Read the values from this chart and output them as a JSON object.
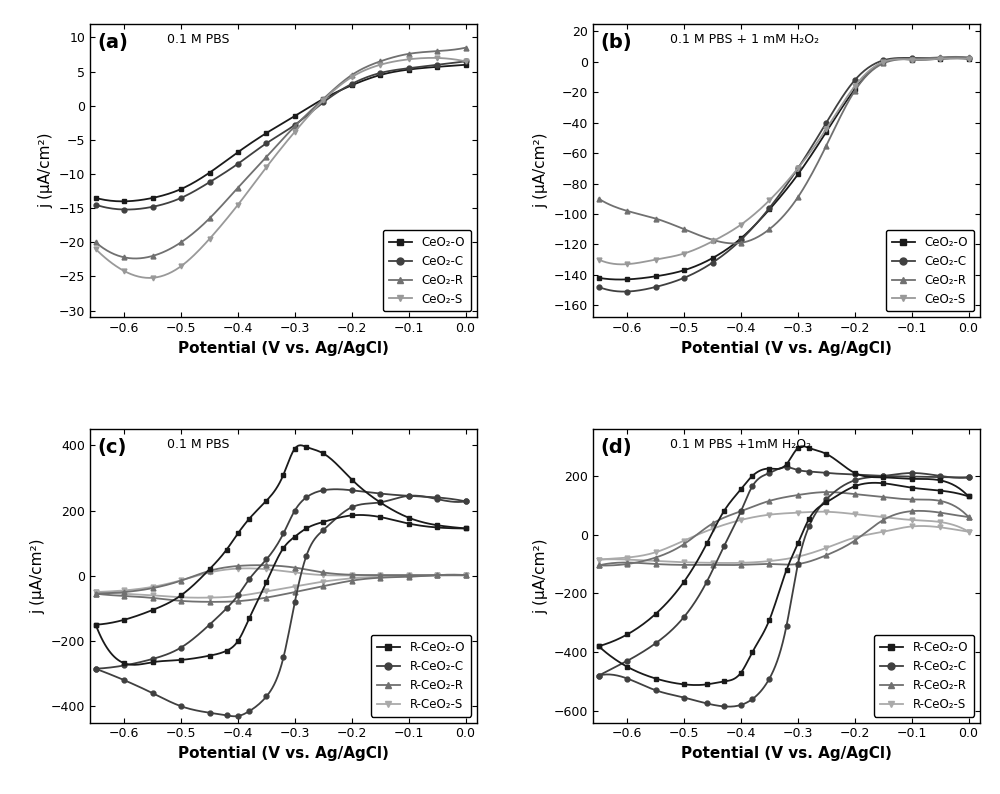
{
  "fig_width": 10.0,
  "fig_height": 7.94,
  "background_color": "#ffffff",
  "panel_titles": [
    "0.1 M PBS",
    "0.1 M PBS + 1 mM H₂O₂",
    "0.1 M PBS",
    "0.1 M PBS +1mM H₂O₂"
  ],
  "xlabel": "Potential (V vs. Ag/AgCl)",
  "ylabel": "j (μA/cm²)",
  "xlim": [
    -0.66,
    0.02
  ],
  "xticks": [
    -0.6,
    -0.5,
    -0.4,
    -0.3,
    -0.2,
    -0.1,
    0.0
  ],
  "ylim_a": [
    -31,
    12
  ],
  "yticks_a": [
    -30,
    -25,
    -20,
    -15,
    -10,
    -5,
    0,
    5,
    10
  ],
  "ylim_b": [
    -168,
    25
  ],
  "yticks_b": [
    -160,
    -140,
    -120,
    -100,
    -80,
    -60,
    -40,
    -20,
    0,
    20
  ],
  "ylim_c": [
    -450,
    450
  ],
  "yticks_c": [
    -400,
    -200,
    0,
    200,
    400
  ],
  "ylim_d": [
    -640,
    360
  ],
  "yticks_d": [
    -600,
    -400,
    -200,
    0,
    200
  ],
  "colors_ab": {
    "O": "#1a1a1a",
    "C": "#404040",
    "R": "#707070",
    "S": "#999999"
  },
  "colors_cd": {
    "O": "#1a1a1a",
    "C": "#404040",
    "R": "#707070",
    "S": "#aaaaaa"
  },
  "markers": {
    "O": "s",
    "C": "o",
    "R": "^",
    "S": "v"
  },
  "legend_ab": [
    "CeO₂-O",
    "CeO₂-C",
    "CeO₂-R",
    "CeO₂-S"
  ],
  "legend_cd": [
    "R-CeO₂-O",
    "R-CeO₂-C",
    "R-CeO₂-R",
    "R-CeO₂-S"
  ],
  "a_knots_x": [
    -0.65,
    -0.6,
    -0.55,
    -0.5,
    -0.45,
    -0.4,
    -0.35,
    -0.3,
    -0.25,
    -0.2,
    -0.15,
    -0.1,
    -0.05,
    0.0
  ],
  "a_O_y": [
    -13.5,
    -14.0,
    -13.5,
    -12.2,
    -9.8,
    -6.8,
    -4.0,
    -1.5,
    1.0,
    3.0,
    4.5,
    5.3,
    5.7,
    6.0
  ],
  "a_C_y": [
    -14.5,
    -15.2,
    -14.8,
    -13.5,
    -11.2,
    -8.5,
    -5.5,
    -2.8,
    0.5,
    3.2,
    4.8,
    5.5,
    6.0,
    6.5
  ],
  "a_R_y": [
    -20.0,
    -22.2,
    -22.0,
    -20.0,
    -16.5,
    -12.0,
    -7.5,
    -3.0,
    1.0,
    4.5,
    6.5,
    7.6,
    8.0,
    8.5
  ],
  "a_S_y": [
    -21.0,
    -24.2,
    -25.2,
    -23.5,
    -19.5,
    -14.5,
    -9.0,
    -3.8,
    0.8,
    4.2,
    6.0,
    6.8,
    7.0,
    6.5
  ],
  "b_knots_x": [
    -0.65,
    -0.6,
    -0.55,
    -0.5,
    -0.45,
    -0.4,
    -0.35,
    -0.3,
    -0.25,
    -0.2,
    -0.15,
    -0.1,
    -0.05,
    0.0
  ],
  "b_O_y": [
    -142,
    -143,
    -141,
    -137,
    -129,
    -116,
    -97,
    -74,
    -46,
    -18,
    0,
    1.5,
    2.0,
    2.0
  ],
  "b_C_y": [
    -148,
    -151,
    -148,
    -142,
    -132,
    -117,
    -96,
    -70,
    -40,
    -12,
    1,
    2.5,
    2.5,
    2.5
  ],
  "b_R_y": [
    -90,
    -98,
    -103,
    -110,
    -117,
    -119,
    -110,
    -89,
    -55,
    -19,
    -1,
    2.0,
    3.0,
    3.0
  ],
  "b_S_y": [
    -130,
    -133,
    -130,
    -126,
    -118,
    -107,
    -91,
    -70,
    -44,
    -16,
    0,
    1.5,
    2.0,
    2.0
  ],
  "c_O_fwd_x": [
    -0.65,
    -0.6,
    -0.55,
    -0.5,
    -0.45,
    -0.42,
    -0.4,
    -0.38,
    -0.35,
    -0.32,
    -0.3,
    -0.28,
    -0.25,
    -0.2,
    -0.15,
    -0.1,
    -0.05,
    0.0
  ],
  "c_O_fwd_y": [
    -150,
    -135,
    -105,
    -60,
    20,
    80,
    130,
    175,
    230,
    310,
    390,
    395,
    375,
    295,
    225,
    178,
    155,
    145
  ],
  "c_O_rev_x": [
    0.0,
    -0.05,
    -0.1,
    -0.15,
    -0.2,
    -0.25,
    -0.28,
    -0.3,
    -0.32,
    -0.35,
    -0.38,
    -0.4,
    -0.42,
    -0.45,
    -0.5,
    -0.55,
    -0.6,
    -0.65
  ],
  "c_O_rev_y": [
    145,
    148,
    160,
    180,
    185,
    165,
    145,
    120,
    85,
    -20,
    -130,
    -200,
    -230,
    -245,
    -258,
    -265,
    -268,
    -150
  ],
  "c_C_fwd_x": [
    -0.65,
    -0.6,
    -0.55,
    -0.5,
    -0.45,
    -0.42,
    -0.4,
    -0.38,
    -0.35,
    -0.32,
    -0.3,
    -0.28,
    -0.25,
    -0.2,
    -0.15,
    -0.1,
    -0.05,
    0.0
  ],
  "c_C_fwd_y": [
    -285,
    -275,
    -255,
    -220,
    -150,
    -100,
    -60,
    -10,
    50,
    130,
    200,
    240,
    262,
    262,
    252,
    245,
    240,
    228
  ],
  "c_C_rev_x": [
    0.0,
    -0.05,
    -0.1,
    -0.15,
    -0.2,
    -0.25,
    -0.28,
    -0.3,
    -0.32,
    -0.35,
    -0.38,
    -0.4,
    -0.42,
    -0.45,
    -0.5,
    -0.55,
    -0.6,
    -0.65
  ],
  "c_C_rev_y": [
    228,
    235,
    245,
    225,
    210,
    140,
    60,
    -80,
    -250,
    -370,
    -415,
    -430,
    -428,
    -420,
    -400,
    -360,
    -320,
    -285
  ],
  "c_R_fwd_x": [
    -0.65,
    -0.6,
    -0.55,
    -0.5,
    -0.45,
    -0.4,
    -0.35,
    -0.3,
    -0.25,
    -0.2,
    -0.15,
    -0.1,
    -0.05,
    0.0
  ],
  "c_R_fwd_y": [
    -55,
    -50,
    -38,
    -15,
    15,
    30,
    32,
    25,
    10,
    3,
    2,
    2,
    2,
    2
  ],
  "c_R_rev_x": [
    0.0,
    -0.05,
    -0.1,
    -0.15,
    -0.2,
    -0.25,
    -0.3,
    -0.35,
    -0.4,
    -0.45,
    -0.5,
    -0.55,
    -0.6,
    -0.65
  ],
  "c_R_rev_y": [
    2,
    2,
    -3,
    -6,
    -15,
    -32,
    -50,
    -67,
    -78,
    -80,
    -77,
    -68,
    -62,
    -55
  ],
  "c_S_fwd_x": [
    -0.65,
    -0.6,
    -0.55,
    -0.5,
    -0.45,
    -0.4,
    -0.35,
    -0.3,
    -0.25,
    -0.2,
    -0.15,
    -0.1,
    -0.05,
    0.0
  ],
  "c_S_fwd_y": [
    -50,
    -45,
    -34,
    -14,
    10,
    22,
    20,
    10,
    2,
    1,
    1,
    1,
    1,
    1
  ],
  "c_S_rev_x": [
    0.0,
    -0.05,
    -0.1,
    -0.15,
    -0.2,
    -0.25,
    -0.3,
    -0.35,
    -0.4,
    -0.45,
    -0.5,
    -0.55,
    -0.6,
    -0.65
  ],
  "c_S_rev_y": [
    1,
    1,
    -2,
    -3,
    -8,
    -18,
    -33,
    -48,
    -62,
    -67,
    -66,
    -60,
    -55,
    -50
  ],
  "d_O_fwd_x": [
    -0.65,
    -0.6,
    -0.55,
    -0.5,
    -0.46,
    -0.43,
    -0.4,
    -0.38,
    -0.35,
    -0.32,
    -0.3,
    -0.28,
    -0.25,
    -0.2,
    -0.15,
    -0.1,
    -0.05,
    0.0
  ],
  "d_O_fwd_y": [
    -380,
    -340,
    -270,
    -160,
    -30,
    80,
    155,
    200,
    225,
    240,
    295,
    295,
    275,
    210,
    195,
    190,
    185,
    130
  ],
  "d_O_rev_x": [
    0.0,
    -0.05,
    -0.1,
    -0.15,
    -0.2,
    -0.25,
    -0.28,
    -0.3,
    -0.32,
    -0.35,
    -0.38,
    -0.4,
    -0.43,
    -0.46,
    -0.5,
    -0.55,
    -0.6,
    -0.65
  ],
  "d_O_rev_y": [
    130,
    150,
    160,
    175,
    165,
    110,
    55,
    -30,
    -120,
    -290,
    -400,
    -470,
    -500,
    -510,
    -510,
    -490,
    -450,
    -380
  ],
  "d_C_fwd_x": [
    -0.65,
    -0.6,
    -0.55,
    -0.5,
    -0.46,
    -0.43,
    -0.4,
    -0.38,
    -0.35,
    -0.32,
    -0.3,
    -0.28,
    -0.25,
    -0.2,
    -0.15,
    -0.1,
    -0.05,
    0.0
  ],
  "d_C_fwd_y": [
    -480,
    -430,
    -370,
    -280,
    -160,
    -40,
    80,
    165,
    210,
    230,
    220,
    215,
    210,
    205,
    200,
    198,
    196,
    195
  ],
  "d_C_rev_x": [
    0.0,
    -0.05,
    -0.1,
    -0.15,
    -0.2,
    -0.25,
    -0.28,
    -0.3,
    -0.32,
    -0.35,
    -0.38,
    -0.4,
    -0.43,
    -0.46,
    -0.5,
    -0.55,
    -0.6,
    -0.65
  ],
  "d_C_rev_y": [
    195,
    200,
    210,
    200,
    185,
    120,
    30,
    -100,
    -310,
    -490,
    -560,
    -580,
    -585,
    -575,
    -555,
    -530,
    -490,
    -480
  ],
  "d_R_fwd_x": [
    -0.65,
    -0.6,
    -0.55,
    -0.5,
    -0.45,
    -0.4,
    -0.35,
    -0.3,
    -0.25,
    -0.2,
    -0.15,
    -0.1,
    -0.05,
    0.0
  ],
  "d_R_fwd_y": [
    -105,
    -100,
    -78,
    -32,
    38,
    80,
    115,
    135,
    145,
    138,
    128,
    120,
    115,
    60
  ],
  "d_R_rev_x": [
    0.0,
    -0.05,
    -0.1,
    -0.15,
    -0.2,
    -0.25,
    -0.3,
    -0.35,
    -0.4,
    -0.45,
    -0.5,
    -0.55,
    -0.6,
    -0.65
  ],
  "d_R_rev_y": [
    60,
    75,
    80,
    50,
    -20,
    -70,
    -100,
    -100,
    -103,
    -103,
    -103,
    -100,
    -95,
    -105
  ],
  "d_S_fwd_x": [
    -0.65,
    -0.6,
    -0.55,
    -0.5,
    -0.45,
    -0.4,
    -0.35,
    -0.3,
    -0.25,
    -0.2,
    -0.15,
    -0.1,
    -0.05,
    0.0
  ],
  "d_S_fwd_y": [
    -85,
    -78,
    -60,
    -20,
    20,
    50,
    68,
    75,
    78,
    70,
    60,
    50,
    43,
    10
  ],
  "d_S_rev_x": [
    0.0,
    -0.05,
    -0.1,
    -0.15,
    -0.2,
    -0.25,
    -0.3,
    -0.35,
    -0.4,
    -0.45,
    -0.5,
    -0.55,
    -0.6,
    -0.65
  ],
  "d_S_rev_y": [
    10,
    25,
    28,
    10,
    -10,
    -45,
    -75,
    -90,
    -96,
    -96,
    -94,
    -90,
    -85,
    -85
  ]
}
